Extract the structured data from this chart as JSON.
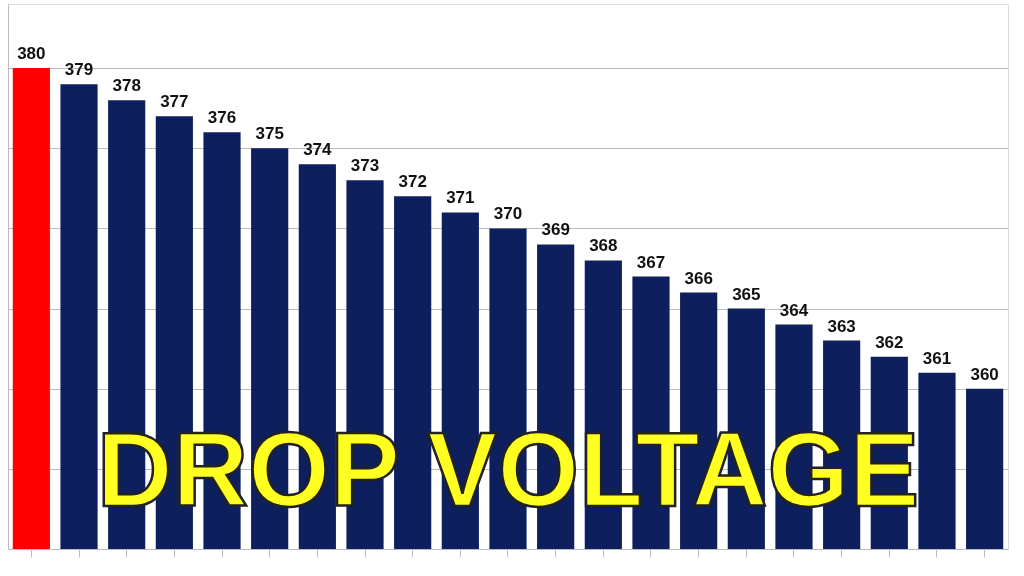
{
  "chart_data": {
    "type": "bar",
    "categories": [
      null,
      null,
      null,
      null,
      null,
      null,
      null,
      null,
      null,
      null,
      null,
      null,
      null,
      null,
      null,
      null,
      null,
      null,
      null,
      null,
      null
    ],
    "values": [
      380,
      379,
      378,
      377,
      376,
      375,
      374,
      373,
      372,
      371,
      370,
      369,
      368,
      367,
      366,
      365,
      364,
      363,
      362,
      361,
      360
    ],
    "colors": [
      "#ff0000",
      "#0d1f5c",
      "#0d1f5c",
      "#0d1f5c",
      "#0d1f5c",
      "#0d1f5c",
      "#0d1f5c",
      "#0d1f5c",
      "#0d1f5c",
      "#0d1f5c",
      "#0d1f5c",
      "#0d1f5c",
      "#0d1f5c",
      "#0d1f5c",
      "#0d1f5c",
      "#0d1f5c",
      "#0d1f5c",
      "#0d1f5c",
      "#0d1f5c",
      "#0d1f5c",
      "#0d1f5c"
    ],
    "ylim": [
      350,
      384
    ],
    "yticks": [
      {
        "value": 355,
        "label": null
      },
      {
        "value": 360,
        "label": null
      },
      {
        "value": 365,
        "label": null
      },
      {
        "value": 370,
        "label": null
      },
      {
        "value": 375,
        "label": null
      },
      {
        "value": 380,
        "label": null
      }
    ],
    "grid": "y",
    "tick_labels": false,
    "data_labels": true,
    "annotations": [
      "DROP VOLTAGE"
    ]
  }
}
